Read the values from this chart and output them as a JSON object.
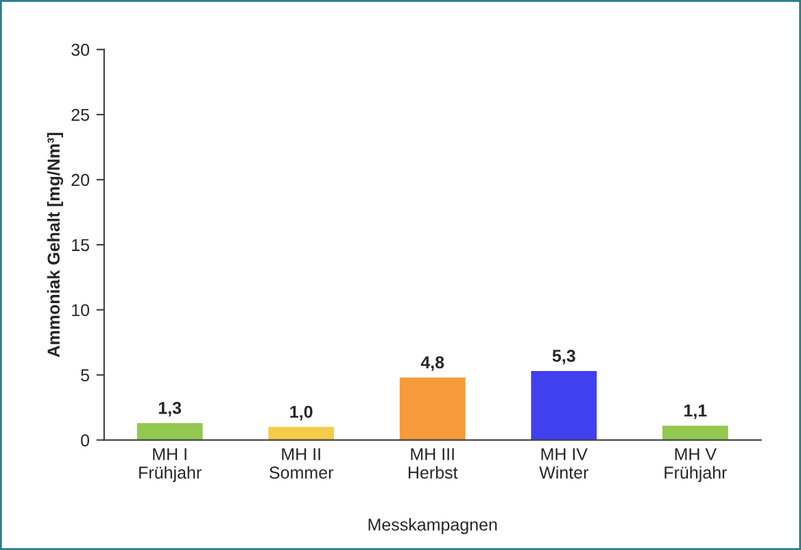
{
  "chart_data": {
    "type": "bar",
    "ylabel": "Ammoniak Gehalt [mg/Nm³]",
    "xlabel": "Messkampagnen",
    "categories": [
      "MH I\nFrühjahr",
      "MH II\nSommer",
      "MH III\nHerbst",
      "MH IV\nWinter",
      "MH V\nFrühjahr"
    ],
    "values": [
      1.3,
      1.0,
      4.8,
      5.3,
      1.1
    ],
    "value_labels": [
      "1,3",
      "1,0",
      "4,8",
      "5,3",
      "1,1"
    ],
    "colors": [
      "#92c850",
      "#f5cc4a",
      "#f79a3a",
      "#4040f0",
      "#92c850"
    ],
    "ylim": [
      0,
      30
    ],
    "yticks": [
      0,
      5,
      10,
      15,
      20,
      25,
      30
    ],
    "grid": false,
    "legend": false
  }
}
